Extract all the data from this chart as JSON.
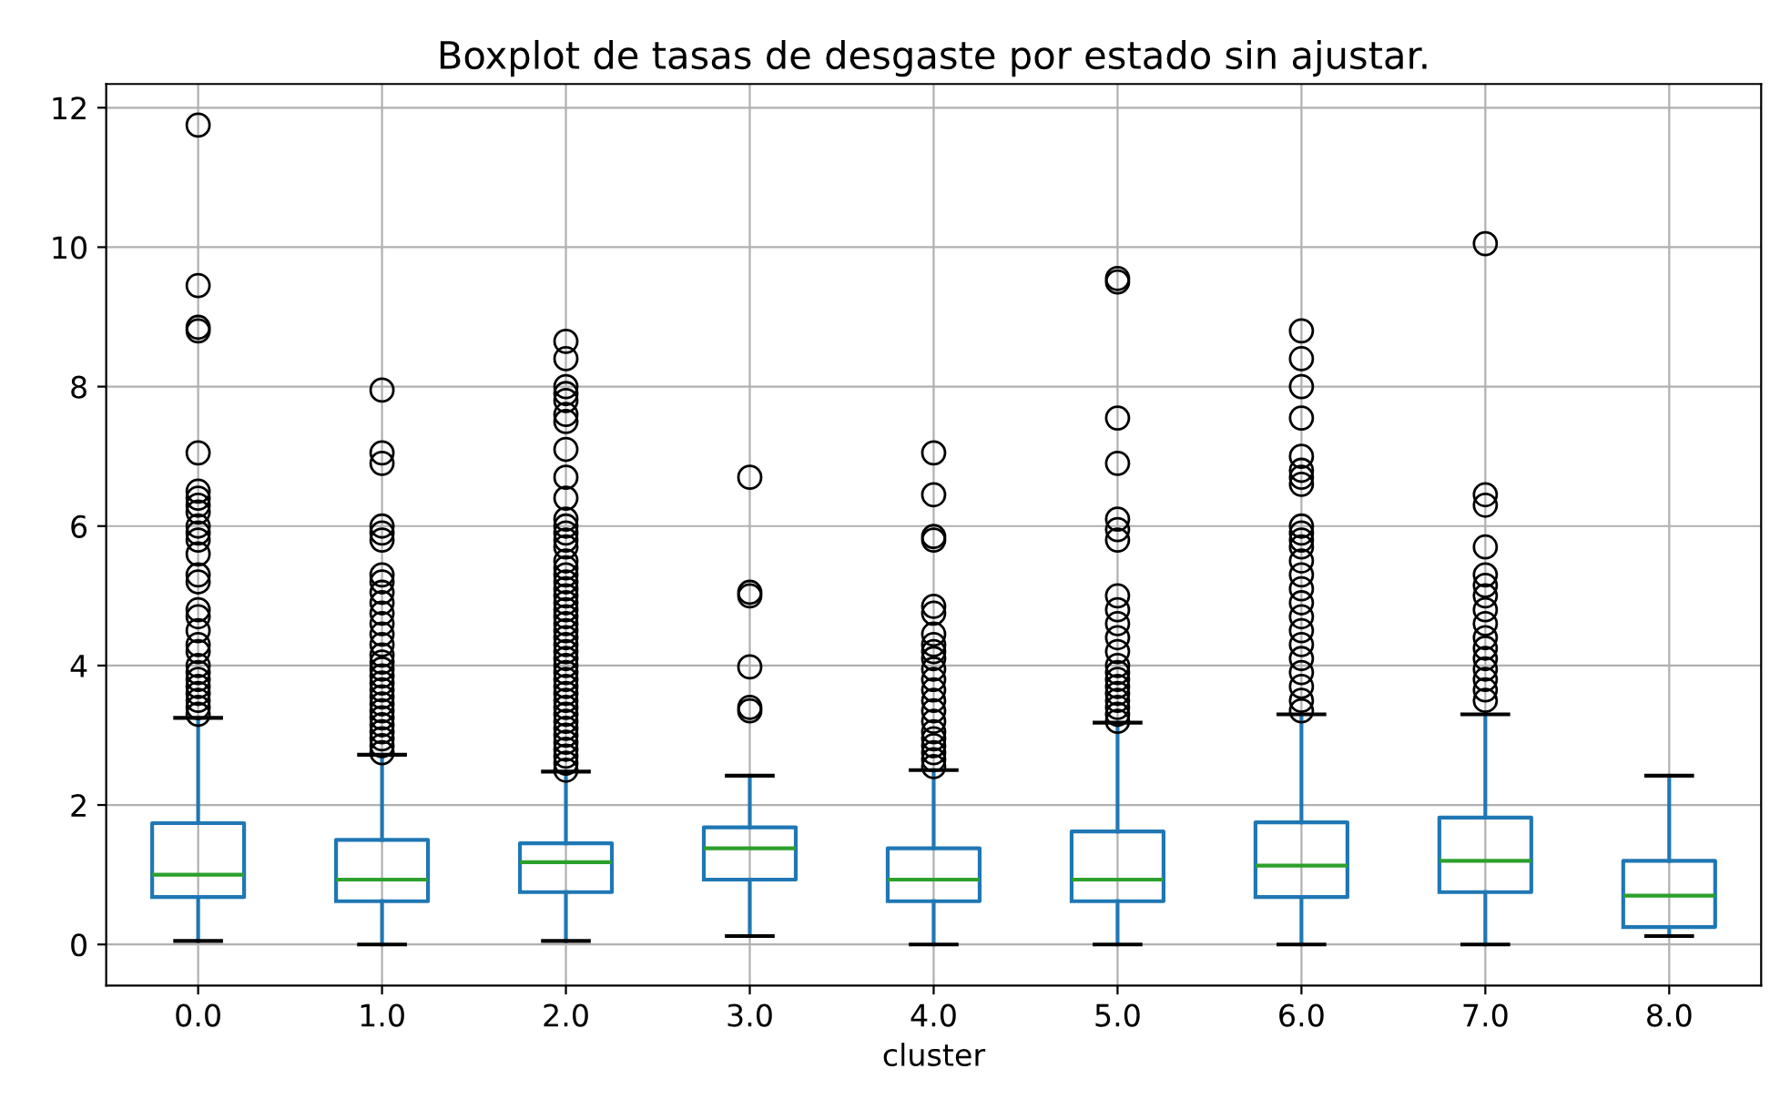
{
  "chart_data": {
    "type": "box",
    "title": "Boxplot de tasas de desgaste por estado sin ajustar.",
    "xlabel": "cluster",
    "categories": [
      "0.0",
      "1.0",
      "2.0",
      "3.0",
      "4.0",
      "5.0",
      "6.0",
      "7.0",
      "8.0"
    ],
    "ylim": [
      -0.59,
      12.34
    ],
    "yticks": [
      0,
      2,
      4,
      6,
      8,
      10,
      12
    ],
    "grid": true,
    "color": "#1f77b4",
    "boxes": [
      {
        "low": 0.05,
        "q1": 0.68,
        "median": 1.0,
        "q3": 1.74,
        "high": 3.25,
        "outliers": [
          3.3,
          3.4,
          3.5,
          3.6,
          3.7,
          3.8,
          3.9,
          4.0,
          4.2,
          4.3,
          4.5,
          4.7,
          4.8,
          5.2,
          5.3,
          5.6,
          5.8,
          5.9,
          6.0,
          6.2,
          6.3,
          6.4,
          6.5,
          7.05,
          8.8,
          8.85,
          9.45,
          11.75
        ]
      },
      {
        "low": 0.0,
        "q1": 0.62,
        "median": 0.93,
        "q3": 1.5,
        "high": 2.72,
        "outliers": [
          2.75,
          2.85,
          2.95,
          3.05,
          3.15,
          3.25,
          3.35,
          3.45,
          3.55,
          3.65,
          3.75,
          3.85,
          3.95,
          4.05,
          4.15,
          4.3,
          4.45,
          4.6,
          4.75,
          4.9,
          5.05,
          5.2,
          5.3,
          5.8,
          5.9,
          6.0,
          6.9,
          7.05,
          7.95
        ]
      },
      {
        "low": 0.05,
        "q1": 0.75,
        "median": 1.18,
        "q3": 1.45,
        "high": 2.48,
        "outliers": [
          2.5,
          2.6,
          2.7,
          2.8,
          2.9,
          3.0,
          3.1,
          3.2,
          3.3,
          3.4,
          3.5,
          3.6,
          3.7,
          3.8,
          3.9,
          4.0,
          4.1,
          4.2,
          4.3,
          4.4,
          4.5,
          4.6,
          4.7,
          4.8,
          4.9,
          5.0,
          5.1,
          5.2,
          5.3,
          5.4,
          5.5,
          5.7,
          5.8,
          5.9,
          6.0,
          6.1,
          6.4,
          6.7,
          7.1,
          7.5,
          7.6,
          7.8,
          7.9,
          8.0,
          8.4,
          8.65
        ]
      },
      {
        "low": 0.12,
        "q1": 0.93,
        "median": 1.38,
        "q3": 1.68,
        "high": 2.42,
        "outliers": [
          3.35,
          3.4,
          3.98,
          5.0,
          5.05,
          6.7
        ]
      },
      {
        "low": 0.0,
        "q1": 0.62,
        "median": 0.93,
        "q3": 1.38,
        "high": 2.5,
        "outliers": [
          2.55,
          2.65,
          2.75,
          2.85,
          2.95,
          3.05,
          3.2,
          3.35,
          3.5,
          3.65,
          3.8,
          3.95,
          4.1,
          4.2,
          4.3,
          4.45,
          4.75,
          4.85,
          5.8,
          5.85,
          6.45,
          7.05
        ]
      },
      {
        "low": 0.0,
        "q1": 0.62,
        "median": 0.93,
        "q3": 1.62,
        "high": 3.18,
        "outliers": [
          3.2,
          3.3,
          3.4,
          3.5,
          3.6,
          3.7,
          3.8,
          3.9,
          4.0,
          4.2,
          4.4,
          4.6,
          4.8,
          5.0,
          5.8,
          5.95,
          6.1,
          6.9,
          7.55,
          9.5,
          9.55
        ]
      },
      {
        "low": 0.0,
        "q1": 0.68,
        "median": 1.13,
        "q3": 1.75,
        "high": 3.3,
        "outliers": [
          3.35,
          3.5,
          3.7,
          3.9,
          4.1,
          4.3,
          4.5,
          4.7,
          4.9,
          5.1,
          5.3,
          5.5,
          5.7,
          5.8,
          5.9,
          6.0,
          6.6,
          6.7,
          6.8,
          7.0,
          7.55,
          8.0,
          8.4,
          8.8
        ]
      },
      {
        "low": 0.0,
        "q1": 0.75,
        "median": 1.2,
        "q3": 1.82,
        "high": 3.3,
        "outliers": [
          3.5,
          3.65,
          3.8,
          3.95,
          4.1,
          4.25,
          4.4,
          4.6,
          4.8,
          5.0,
          5.15,
          5.3,
          5.7,
          6.3,
          6.45,
          10.05
        ]
      },
      {
        "low": 0.12,
        "q1": 0.25,
        "median": 0.7,
        "q3": 1.2,
        "high": 2.42
      }
    ]
  }
}
